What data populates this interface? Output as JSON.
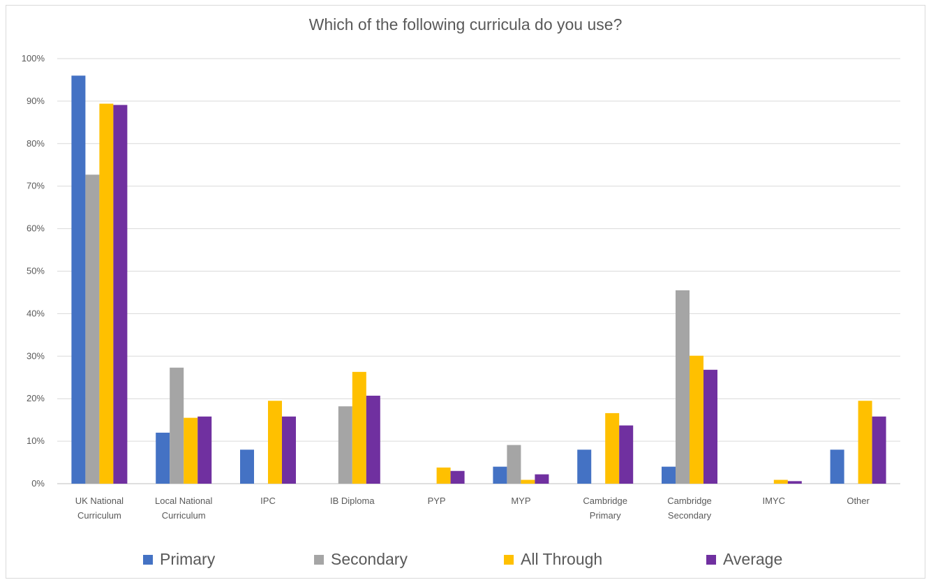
{
  "chart_data": {
    "type": "bar",
    "title": "Which of the following curricula do you use?",
    "xlabel": "",
    "ylabel": "",
    "ylim": [
      0,
      100
    ],
    "yticks": [
      "0%",
      "10%",
      "20%",
      "30%",
      "40%",
      "50%",
      "60%",
      "70%",
      "80%",
      "90%",
      "100%"
    ],
    "grid": true,
    "legend_position": "bottom",
    "categories": [
      [
        "UK National",
        "Curriculum"
      ],
      [
        "Local National",
        "Curriculum"
      ],
      [
        "IPC"
      ],
      [
        "IB Diploma"
      ],
      [
        "PYP"
      ],
      [
        "MYP"
      ],
      [
        "Cambridge",
        "Primary"
      ],
      [
        "Cambridge",
        "Secondary"
      ],
      [
        "IMYC"
      ],
      [
        "Other"
      ]
    ],
    "series": [
      {
        "name": "Primary",
        "color": "#4472c4",
        "values": [
          96,
          12,
          8,
          0,
          0,
          4,
          8,
          4,
          0,
          8
        ]
      },
      {
        "name": "Secondary",
        "color": "#a5a5a5",
        "values": [
          72.7,
          27.3,
          0,
          18.2,
          0,
          9.1,
          0,
          45.5,
          0,
          0
        ]
      },
      {
        "name": "All Through",
        "color": "#ffc000",
        "values": [
          89.4,
          15.5,
          19.5,
          26.3,
          3.8,
          0.9,
          16.6,
          30.1,
          0.9,
          19.5
        ]
      },
      {
        "name": "Average",
        "color": "#7030a0",
        "values": [
          89.1,
          15.8,
          15.8,
          20.7,
          3.0,
          2.2,
          13.7,
          26.8,
          0.6,
          15.8
        ]
      }
    ]
  }
}
